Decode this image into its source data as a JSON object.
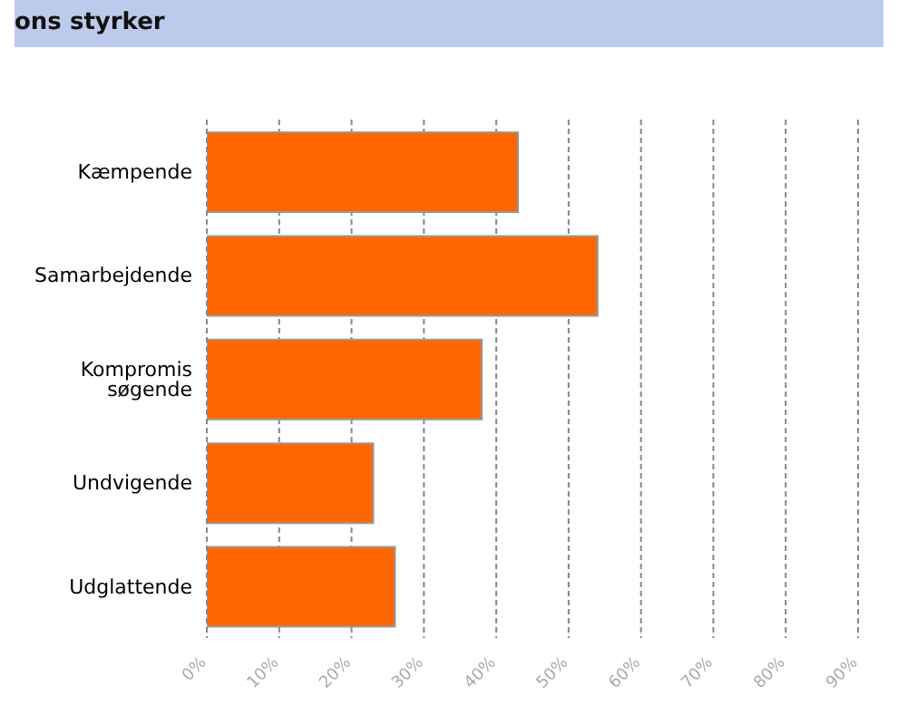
{
  "chart_data": {
    "type": "bar",
    "orientation": "horizontal",
    "title": "ons styrker",
    "categories": [
      "Kæmpende",
      "Samarbejdende",
      "Kompromis søgende",
      "Undvigende",
      "Udglattende"
    ],
    "values": [
      43,
      54,
      38,
      23,
      26
    ],
    "color": "#ff6600",
    "xlim": [
      0,
      90
    ],
    "xticks": [
      {
        "value": 0,
        "label": "0%"
      },
      {
        "value": 10,
        "label": "10%"
      },
      {
        "value": 20,
        "label": "20%"
      },
      {
        "value": 30,
        "label": "30%"
      },
      {
        "value": 40,
        "label": "40%"
      },
      {
        "value": 50,
        "label": "50%"
      },
      {
        "value": 60,
        "label": "60%"
      },
      {
        "value": 70,
        "label": "70%"
      },
      {
        "value": 80,
        "label": "80%"
      },
      {
        "value": 90,
        "label": "90%"
      }
    ],
    "grid": "x"
  }
}
